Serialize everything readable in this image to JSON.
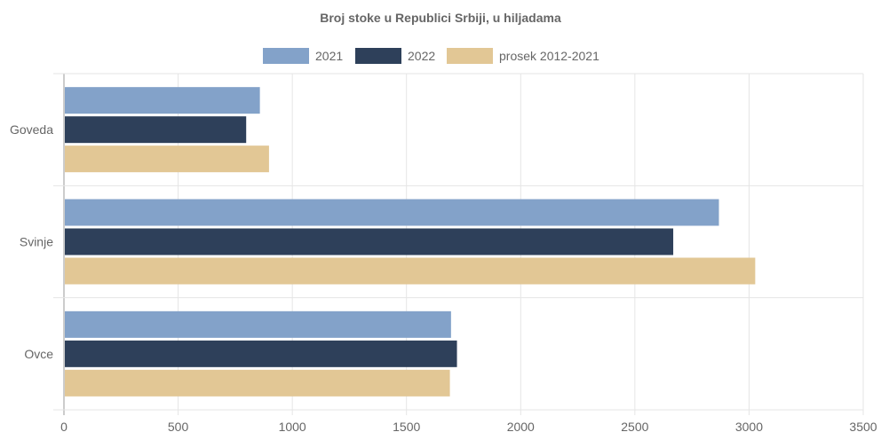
{
  "chart_data": {
    "type": "bar",
    "orientation": "horizontal",
    "title": "Broj stoke u Republici Srbiji, u hiljadama",
    "categories": [
      "Goveda",
      "Svinje",
      "Ovce"
    ],
    "series": [
      {
        "name": "2021",
        "color": "#83a2c9",
        "values": [
          858,
          2868,
          1695
        ]
      },
      {
        "name": "2022",
        "color": "#2e405a",
        "values": [
          798,
          2668,
          1721
        ]
      },
      {
        "name": "prosek 2012-2021",
        "color": "#e2c795",
        "values": [
          898,
          3027,
          1690
        ]
      }
    ],
    "xlim": [
      0,
      3500
    ],
    "xticks": [
      "0",
      "500",
      "1000",
      "1500",
      "2000",
      "2500",
      "3000",
      "3500"
    ],
    "grid": true,
    "legend_position": "top"
  }
}
